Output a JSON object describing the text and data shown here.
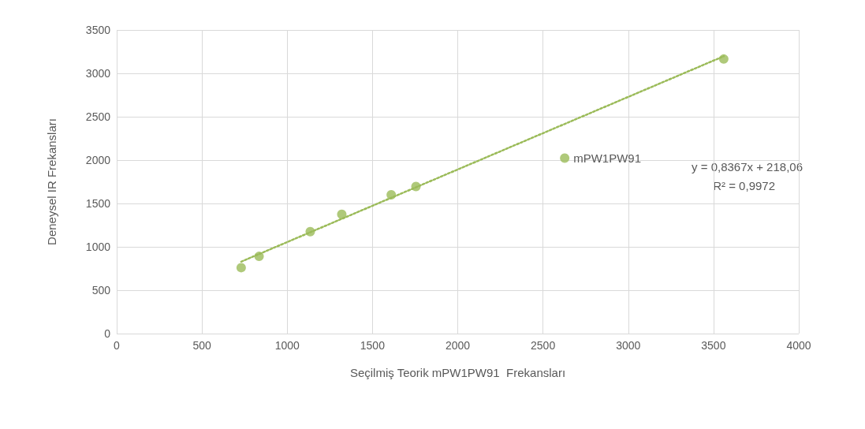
{
  "chart_data": {
    "type": "scatter",
    "xlabel": "Seçilmiş Teorik mPW1PW91  Frekansları",
    "ylabel": "Deneysel IR Frekansları",
    "xlim": [
      0,
      4000
    ],
    "xticks": [
      0,
      500,
      1000,
      1500,
      2000,
      2500,
      3000,
      3500,
      4000
    ],
    "ylim": [
      0,
      3500
    ],
    "yticks": [
      0,
      500,
      1000,
      1500,
      2000,
      2500,
      3000,
      3500
    ],
    "grid": true,
    "legend": "right",
    "marker": "circle",
    "series": [
      {
        "name": "mPW1PW91",
        "color": "#9bbb59",
        "x": [
          730,
          835,
          1135,
          1320,
          1610,
          1755,
          3560
        ],
        "values": [
          760,
          890,
          1175,
          1375,
          1600,
          1695,
          3165
        ]
      },
      {
        "type": "line",
        "color": "#9bbb59",
        "line_style": "dotted",
        "marker": "none",
        "x": [
          730,
          3560
        ],
        "values": [
          829,
          3197
        ]
      }
    ],
    "annotations": [
      "y = 0,8367x + 218,06",
      "R² = 0,9972"
    ]
  }
}
